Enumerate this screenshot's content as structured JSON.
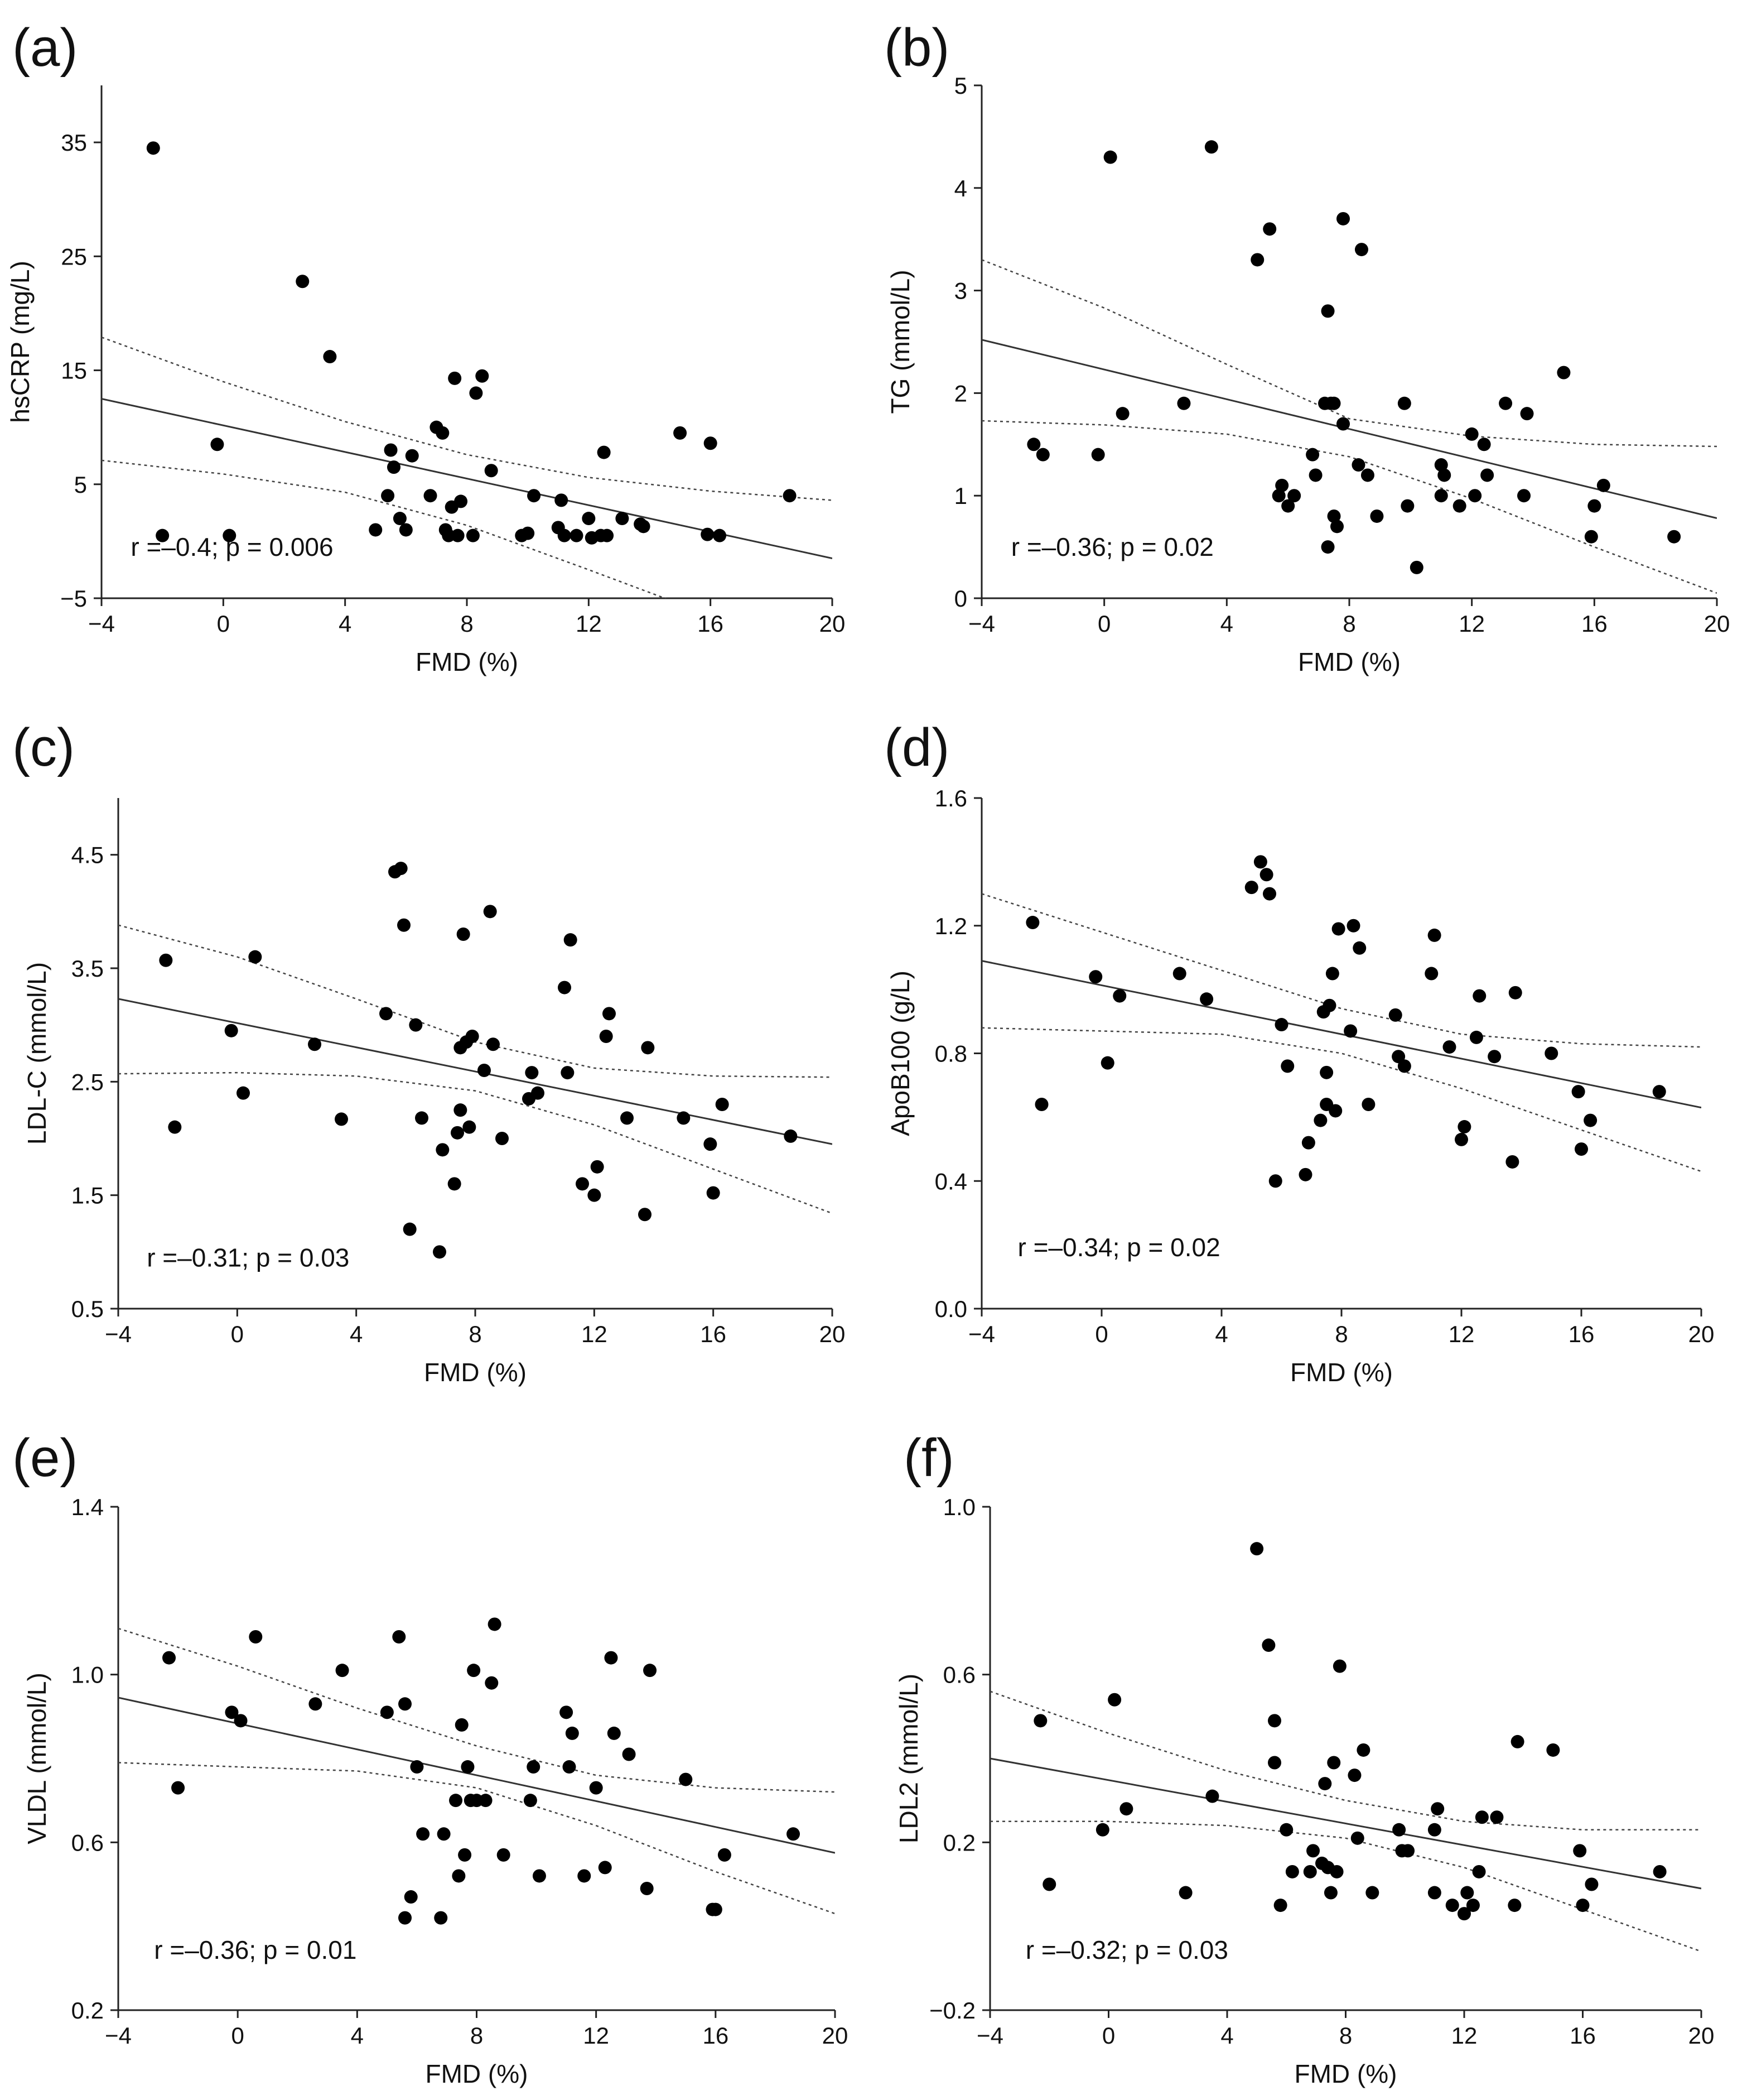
{
  "chart_data": [
    {
      "type": "scatter",
      "panel": "(a)",
      "xlabel": "FMD (%)",
      "ylabel": "hsCRP (mg/L)",
      "xlim": [
        -4,
        20
      ],
      "ylim": [
        -5,
        40
      ],
      "xticks": [
        -4,
        0,
        4,
        8,
        12,
        16,
        20
      ],
      "xtick_labels": [
        "−4",
        "0",
        "4",
        "8",
        "12",
        "16",
        "20"
      ],
      "yticks": [
        -5,
        5,
        15,
        25,
        35
      ],
      "ytick_labels": [
        "−5",
        "5",
        "15",
        "25",
        "35"
      ],
      "annotation": "r =–0.4; p = 0.006",
      "regression": {
        "x": [
          -4,
          20
        ],
        "y": [
          12.5,
          -1.5
        ]
      },
      "ci_upper": {
        "x": [
          -4,
          0,
          4,
          8,
          12,
          16,
          20
        ],
        "y": [
          17.9,
          14.0,
          10.5,
          7.6,
          5.6,
          4.4,
          3.6
        ]
      },
      "ci_lower": {
        "x": [
          -4,
          0,
          4,
          8,
          12,
          16,
          20
        ],
        "y": [
          7.1,
          5.9,
          4.3,
          1.4,
          -2.5,
          -6.5,
          -7.0
        ]
      },
      "points": {
        "x": [
          -2.3,
          -2.0,
          -0.2,
          0.2,
          2.6,
          3.5,
          5.0,
          5.4,
          5.5,
          5.6,
          5.8,
          6.0,
          6.2,
          6.8,
          7.0,
          7.2,
          7.3,
          7.4,
          7.5,
          7.6,
          7.7,
          7.8,
          8.2,
          8.3,
          8.5,
          8.8,
          9.8,
          10.0,
          10.2,
          11.0,
          11.1,
          11.2,
          11.6,
          12.0,
          12.1,
          12.4,
          12.5,
          12.6,
          13.1,
          13.7,
          13.8,
          15.0,
          15.9,
          16.0,
          16.3,
          18.6
        ],
        "y": [
          34.5,
          0.5,
          8.5,
          0.5,
          22.8,
          16.2,
          1.0,
          4.0,
          8.0,
          6.5,
          2.0,
          1.0,
          7.5,
          4.0,
          10.0,
          9.5,
          1.0,
          0.5,
          3.0,
          14.3,
          0.5,
          3.5,
          0.5,
          13.0,
          14.5,
          6.2,
          0.5,
          0.7,
          4.0,
          1.2,
          3.6,
          0.5,
          0.5,
          2.0,
          0.3,
          0.5,
          7.8,
          0.5,
          2.0,
          1.5,
          1.3,
          9.5,
          0.6,
          8.6,
          0.5,
          4.0
        ]
      }
    },
    {
      "type": "scatter",
      "panel": "(b)",
      "xlabel": "FMD (%)",
      "ylabel": "TG (mmol/L)",
      "xlim": [
        -4,
        20
      ],
      "ylim": [
        0,
        5
      ],
      "xticks": [
        -4,
        0,
        4,
        8,
        12,
        16,
        20
      ],
      "xtick_labels": [
        "−4",
        "0",
        "4",
        "8",
        "12",
        "16",
        "20"
      ],
      "yticks": [
        0,
        1,
        2,
        3,
        4,
        5
      ],
      "ytick_labels": [
        "0",
        "1",
        "2",
        "3",
        "4",
        "5"
      ],
      "annotation": "r =–0.36; p = 0.02",
      "regression": {
        "x": [
          -4,
          20
        ],
        "y": [
          2.52,
          0.78
        ]
      },
      "ci_upper": {
        "x": [
          -4,
          0,
          4,
          8,
          12,
          16,
          20
        ],
        "y": [
          3.3,
          2.83,
          2.28,
          1.75,
          1.58,
          1.5,
          1.48
        ]
      },
      "ci_lower": {
        "x": [
          -4,
          0,
          4,
          8,
          12,
          16,
          20
        ],
        "y": [
          1.73,
          1.69,
          1.6,
          1.38,
          0.97,
          0.5,
          0.05
        ]
      },
      "points": {
        "x": [
          -2.3,
          -2.0,
          -0.2,
          0.2,
          0.6,
          2.6,
          3.5,
          5.0,
          5.4,
          5.7,
          5.8,
          6.0,
          6.2,
          6.8,
          6.9,
          7.2,
          7.3,
          7.3,
          7.4,
          7.5,
          7.5,
          7.6,
          7.8,
          7.8,
          8.3,
          8.4,
          8.6,
          8.9,
          9.8,
          9.9,
          10.2,
          11.0,
          11.0,
          11.1,
          11.6,
          12.0,
          12.1,
          12.4,
          12.5,
          13.1,
          13.7,
          13.8,
          15.0,
          15.9,
          16.0,
          16.3,
          18.6
        ],
        "y": [
          1.5,
          1.4,
          1.4,
          4.3,
          1.8,
          1.9,
          4.4,
          3.3,
          3.6,
          1.0,
          1.1,
          0.9,
          1.0,
          1.4,
          1.2,
          1.9,
          2.8,
          0.5,
          1.9,
          0.8,
          1.9,
          0.7,
          3.7,
          1.7,
          1.3,
          3.4,
          1.2,
          0.8,
          1.9,
          0.9,
          0.3,
          1.0,
          1.3,
          1.2,
          0.9,
          1.6,
          1.0,
          1.5,
          1.2,
          1.9,
          1.0,
          1.8,
          2.2,
          0.6,
          0.9,
          1.1,
          0.6
        ]
      }
    },
    {
      "type": "scatter",
      "panel": "(c)",
      "xlabel": "FMD (%)",
      "ylabel": "LDL-C (mmol/L)",
      "xlim": [
        -4,
        20
      ],
      "ylim": [
        0.5,
        5.0
      ],
      "xticks": [
        -4,
        0,
        4,
        8,
        12,
        16,
        20
      ],
      "xtick_labels": [
        "−4",
        "0",
        "4",
        "8",
        "12",
        "16",
        "20"
      ],
      "yticks": [
        0.5,
        1.5,
        2.5,
        3.5,
        4.5
      ],
      "ytick_labels": [
        "0.5",
        "1.5",
        "2.5",
        "3.5",
        "4.5"
      ],
      "annotation": "r =–0.31; p = 0.03",
      "regression": {
        "x": [
          -4,
          20
        ],
        "y": [
          3.23,
          1.95
        ]
      },
      "ci_upper": {
        "x": [
          -4,
          0,
          4,
          8,
          12,
          16,
          20
        ],
        "y": [
          3.88,
          3.6,
          3.23,
          2.85,
          2.62,
          2.55,
          2.54
        ]
      },
      "ci_lower": {
        "x": [
          -4,
          0,
          4,
          8,
          12,
          16,
          20
        ],
        "y": [
          2.57,
          2.58,
          2.55,
          2.42,
          2.12,
          1.73,
          1.34
        ]
      },
      "points": {
        "x": [
          -2.4,
          -2.1,
          -0.2,
          0.2,
          0.6,
          2.6,
          3.5,
          5.0,
          5.3,
          5.5,
          5.6,
          5.8,
          6.0,
          6.2,
          6.8,
          6.9,
          7.3,
          7.4,
          7.5,
          7.5,
          7.6,
          7.7,
          7.8,
          7.9,
          8.3,
          8.5,
          8.6,
          8.9,
          9.8,
          9.9,
          10.1,
          11.0,
          11.1,
          11.2,
          11.6,
          12.0,
          12.1,
          12.4,
          12.5,
          13.1,
          13.7,
          13.8,
          15.0,
          15.9,
          16.0,
          16.3,
          18.6
        ],
        "y": [
          3.57,
          2.1,
          2.95,
          2.4,
          3.6,
          2.83,
          2.17,
          3.1,
          4.35,
          4.38,
          3.88,
          1.2,
          3.0,
          2.18,
          1.0,
          1.9,
          1.6,
          2.05,
          2.8,
          2.25,
          3.8,
          2.85,
          2.1,
          2.9,
          2.6,
          4.0,
          2.83,
          2.0,
          2.35,
          2.58,
          2.4,
          3.33,
          2.58,
          3.75,
          1.6,
          1.5,
          1.75,
          2.9,
          3.1,
          2.18,
          1.33,
          2.8,
          2.18,
          1.95,
          1.52,
          2.3,
          2.02
        ]
      }
    },
    {
      "type": "scatter",
      "panel": "(d)",
      "xlabel": "FMD (%)",
      "ylabel": "ApoB100 (g/L)",
      "xlim": [
        -4,
        20
      ],
      "ylim": [
        0.0,
        1.6
      ],
      "xticks": [
        -4,
        0,
        4,
        8,
        12,
        16,
        20
      ],
      "xtick_labels": [
        "−4",
        "0",
        "4",
        "8",
        "12",
        "16",
        "20"
      ],
      "yticks": [
        0.0,
        0.4,
        0.8,
        1.2,
        1.6
      ],
      "ytick_labels": [
        "0.0",
        "0.4",
        "0.8",
        "1.2",
        "1.6"
      ],
      "annotation": "r =–0.34; p = 0.02",
      "regression": {
        "x": [
          -4,
          20
        ],
        "y": [
          1.09,
          0.63
        ]
      },
      "ci_upper": {
        "x": [
          -4,
          0,
          4,
          8,
          12,
          16,
          20
        ],
        "y": [
          1.3,
          1.18,
          1.06,
          0.94,
          0.86,
          0.83,
          0.82
        ]
      },
      "ci_lower": {
        "x": [
          -4,
          0,
          4,
          8,
          12,
          16,
          20
        ],
        "y": [
          0.88,
          0.87,
          0.86,
          0.8,
          0.69,
          0.56,
          0.43
        ]
      },
      "points": {
        "x": [
          -2.3,
          -2.0,
          -0.2,
          0.2,
          0.6,
          2.6,
          3.5,
          5.0,
          5.3,
          5.5,
          5.6,
          5.8,
          6.0,
          6.2,
          6.8,
          6.9,
          7.3,
          7.4,
          7.5,
          7.5,
          7.6,
          7.7,
          7.8,
          7.9,
          8.3,
          8.4,
          8.6,
          8.9,
          9.8,
          9.9,
          10.1,
          11.0,
          11.1,
          11.6,
          12.0,
          12.1,
          12.5,
          12.6,
          13.1,
          13.7,
          13.8,
          15.0,
          15.9,
          16.0,
          16.3,
          18.6
        ],
        "y": [
          1.21,
          0.64,
          1.04,
          0.77,
          0.98,
          1.05,
          0.97,
          1.32,
          1.4,
          1.36,
          1.3,
          0.4,
          0.89,
          0.76,
          0.42,
          0.52,
          0.59,
          0.93,
          0.64,
          0.74,
          0.95,
          1.05,
          0.62,
          1.19,
          0.87,
          1.2,
          1.13,
          0.64,
          0.92,
          0.79,
          0.76,
          1.05,
          1.17,
          0.82,
          0.53,
          0.57,
          0.85,
          0.98,
          0.79,
          0.46,
          0.99,
          0.8,
          0.68,
          0.5,
          0.59,
          0.68
        ]
      }
    },
    {
      "type": "scatter",
      "panel": "(e)",
      "xlabel": "FMD (%)",
      "ylabel": "VLDL (mmol/L)",
      "xlim": [
        -4,
        20
      ],
      "ylim": [
        0.2,
        1.4
      ],
      "xticks": [
        -4,
        0,
        4,
        8,
        12,
        16,
        20
      ],
      "xtick_labels": [
        "−4",
        "0",
        "4",
        "8",
        "12",
        "16",
        "20"
      ],
      "yticks": [
        0.2,
        0.6,
        1.0,
        1.4
      ],
      "ytick_labels": [
        "0.2",
        "0.6",
        "1.0",
        "1.4"
      ],
      "annotation": "r =–0.36; p = 0.01",
      "regression": {
        "x": [
          -4,
          20
        ],
        "y": [
          0.945,
          0.575
        ]
      },
      "ci_upper": {
        "x": [
          -4,
          0,
          4,
          8,
          12,
          16,
          20
        ],
        "y": [
          1.11,
          1.02,
          0.92,
          0.83,
          0.76,
          0.73,
          0.72
        ]
      },
      "ci_lower": {
        "x": [
          -4,
          0,
          4,
          8,
          12,
          16,
          20
        ],
        "y": [
          0.79,
          0.78,
          0.77,
          0.73,
          0.64,
          0.53,
          0.43
        ]
      },
      "points": {
        "x": [
          -2.3,
          -2.0,
          -0.2,
          0.1,
          0.6,
          2.6,
          3.5,
          5.0,
          5.4,
          5.6,
          5.6,
          5.8,
          6.0,
          6.2,
          6.8,
          6.9,
          7.3,
          7.4,
          7.5,
          7.6,
          7.7,
          7.8,
          7.9,
          8.0,
          8.3,
          8.5,
          8.6,
          8.9,
          9.8,
          9.9,
          10.1,
          11.0,
          11.1,
          11.2,
          11.6,
          12.0,
          12.3,
          12.5,
          12.6,
          13.1,
          13.7,
          13.8,
          15.0,
          15.9,
          16.0,
          16.3,
          18.6
        ],
        "y": [
          1.04,
          0.73,
          0.91,
          0.89,
          1.09,
          0.93,
          1.01,
          0.91,
          1.09,
          0.42,
          0.93,
          0.47,
          0.78,
          0.62,
          0.42,
          0.62,
          0.7,
          0.52,
          0.88,
          0.57,
          0.78,
          0.7,
          1.01,
          0.7,
          0.7,
          0.98,
          1.12,
          0.57,
          0.7,
          0.78,
          0.52,
          0.91,
          0.78,
          0.86,
          0.52,
          0.73,
          0.54,
          1.04,
          0.86,
          0.81,
          0.49,
          1.01,
          0.75,
          0.44,
          0.44,
          0.57,
          0.62
        ]
      }
    },
    {
      "type": "scatter",
      "panel": "(f)",
      "xlabel": "FMD (%)",
      "ylabel": "LDL2 (mmol/L)",
      "xlim": [
        -4,
        20
      ],
      "ylim": [
        -0.2,
        1.0
      ],
      "xticks": [
        -4,
        0,
        4,
        8,
        12,
        16,
        20
      ],
      "xtick_labels": [
        "−4",
        "0",
        "4",
        "8",
        "12",
        "16",
        "20"
      ],
      "yticks": [
        -0.2,
        0.2,
        0.6,
        1.0
      ],
      "ytick_labels": [
        "−0.2",
        "0.2",
        "0.6",
        "1.0"
      ],
      "annotation": "r =–0.32; p = 0.03",
      "regression": {
        "x": [
          -4,
          20
        ],
        "y": [
          0.4,
          0.09
        ]
      },
      "ci_upper": {
        "x": [
          -4,
          0,
          4,
          8,
          12,
          16,
          20
        ],
        "y": [
          0.56,
          0.46,
          0.37,
          0.3,
          0.25,
          0.23,
          0.23
        ]
      },
      "ci_lower": {
        "x": [
          -4,
          0,
          4,
          8,
          12,
          16,
          20
        ],
        "y": [
          0.25,
          0.25,
          0.24,
          0.21,
          0.14,
          0.04,
          -0.06
        ]
      },
      "points": {
        "x": [
          -2.3,
          -2.0,
          -0.2,
          0.2,
          0.6,
          2.6,
          3.5,
          5.0,
          5.4,
          5.6,
          5.6,
          5.8,
          6.0,
          6.2,
          6.8,
          6.9,
          7.2,
          7.3,
          7.4,
          7.5,
          7.6,
          7.7,
          7.8,
          8.3,
          8.4,
          8.6,
          8.9,
          9.8,
          9.9,
          10.1,
          11.0,
          11.0,
          11.1,
          11.6,
          12.0,
          12.1,
          12.3,
          12.5,
          12.6,
          13.1,
          13.7,
          13.8,
          15.0,
          15.9,
          16.0,
          16.3,
          18.6
        ],
        "y": [
          0.49,
          0.1,
          0.23,
          0.54,
          0.28,
          0.08,
          0.31,
          0.9,
          0.67,
          0.49,
          0.39,
          0.05,
          0.23,
          0.13,
          0.13,
          0.18,
          0.15,
          0.34,
          0.14,
          0.08,
          0.39,
          0.13,
          0.62,
          0.36,
          0.21,
          0.42,
          0.08,
          0.23,
          0.18,
          0.18,
          0.08,
          0.23,
          0.28,
          0.05,
          0.03,
          0.08,
          0.05,
          0.13,
          0.26,
          0.26,
          0.05,
          0.44,
          0.42,
          0.18,
          0.05,
          0.1,
          0.13
        ]
      }
    }
  ]
}
